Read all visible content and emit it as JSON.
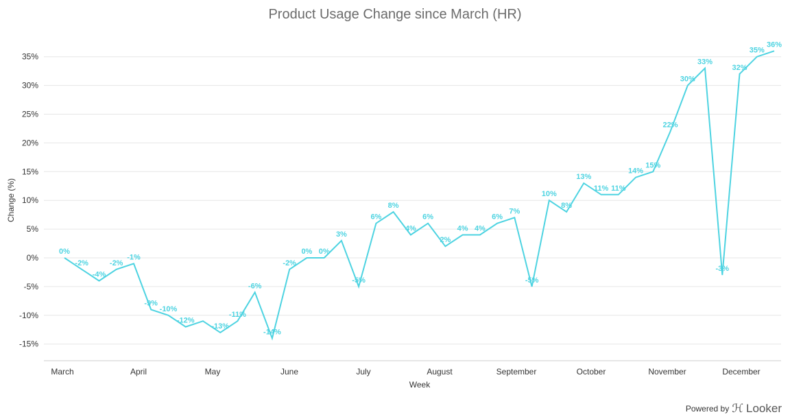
{
  "chart_data": {
    "type": "line",
    "title": "Product Usage Change since March (HR)",
    "xlabel": "Week",
    "ylabel": "Change (%)",
    "ylim": [
      -18,
      37
    ],
    "y_ticks": [
      -15,
      -10,
      -5,
      0,
      5,
      10,
      15,
      20,
      25,
      30,
      35
    ],
    "y_tick_labels": [
      "-15%",
      "-10%",
      "-5%",
      "0%",
      "5%",
      "10%",
      "15%",
      "20%",
      "25%",
      "30%",
      "35%"
    ],
    "x_tick_labels": [
      "March",
      "April",
      "May",
      "June",
      "July",
      "August",
      "September",
      "October",
      "November",
      "December"
    ],
    "grid": true,
    "series": [
      {
        "color": "#4dd3e1",
        "values": [
          0,
          -2,
          -4,
          -2,
          -1,
          -9,
          -10,
          -12,
          -11,
          -13,
          -11,
          -6,
          -14,
          -2,
          0,
          0,
          3,
          -5,
          6,
          8,
          4,
          6,
          2,
          4,
          4,
          6,
          7,
          -5,
          10,
          8,
          13,
          11,
          11,
          14,
          15,
          22,
          30,
          33,
          -3,
          32,
          35,
          36
        ],
        "labels": [
          "0%",
          "-2%",
          "-4%",
          "-2%",
          "-1%",
          "-9%",
          "-10%",
          "-12%",
          "",
          "-13%",
          "-11%",
          "-6%",
          "-14%",
          "-2%",
          "0%",
          "0%",
          "3%",
          "-5%",
          "6%",
          "8%",
          "4%",
          "6%",
          "2%",
          "4%",
          "4%",
          "6%",
          "7%",
          "-5%",
          "10%",
          "8%",
          "13%",
          "11%",
          "11%",
          "14%",
          "15%",
          "22%",
          "30%",
          "33%",
          "-3%",
          "32%",
          "35%",
          "36%"
        ]
      }
    ]
  },
  "footer": {
    "powered_by": "Powered by",
    "brand": "Looker"
  }
}
